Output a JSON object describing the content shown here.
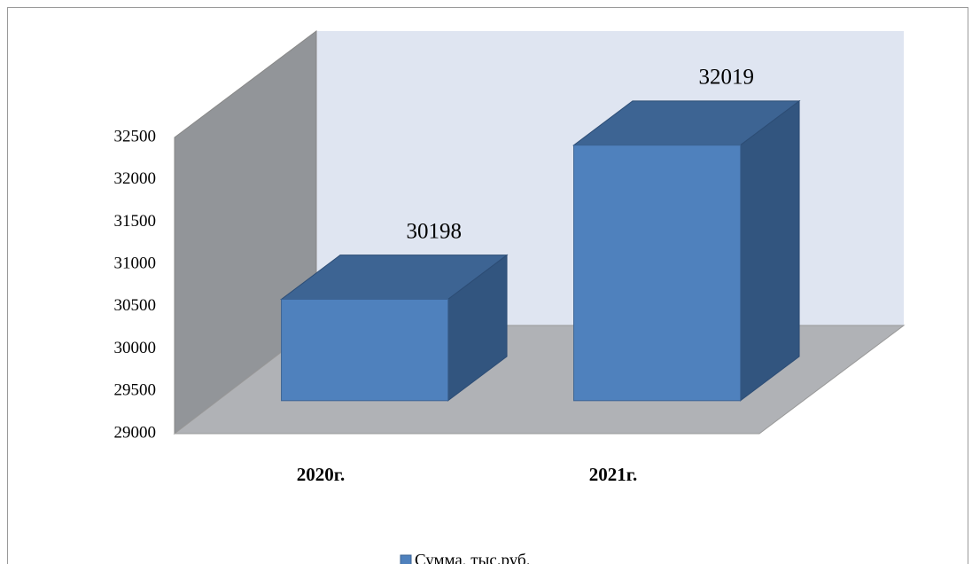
{
  "chart_data": {
    "type": "bar3d",
    "categories": [
      "2020г.",
      "2021г."
    ],
    "series": [
      {
        "name": "Сумма, тыс.руб.",
        "color": "#4f81bd",
        "values": [
          30198,
          32019
        ]
      }
    ],
    "ylim": [
      29000,
      32500
    ],
    "yticks": [
      29000,
      29500,
      30000,
      30500,
      31000,
      31500,
      32000,
      32500
    ],
    "legend": "bottom"
  }
}
